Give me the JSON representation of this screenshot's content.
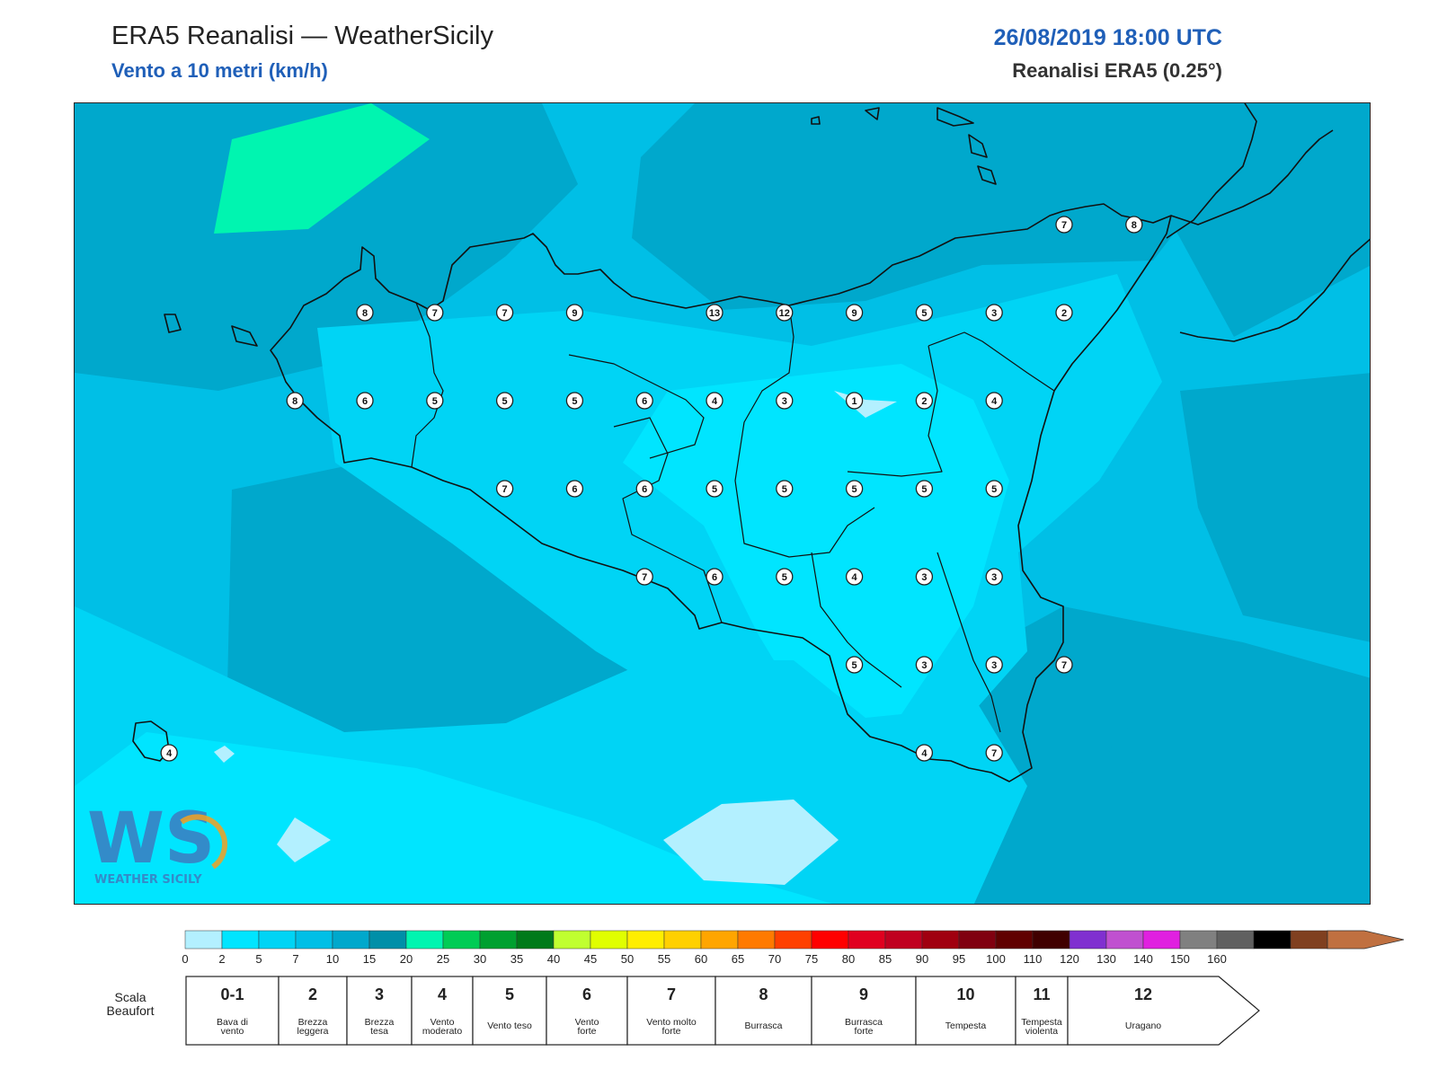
{
  "header": {
    "title": "ERA5 Reanalisi — WeatherSicily",
    "subtitle": "Vento a 10 metri (km/h)",
    "datetime": "26/08/2019 18:00 UTC",
    "source": "Reanalisi ERA5 (0.25°)"
  },
  "logo": {
    "text": "WEATHER SICILY",
    "letters": "WS"
  },
  "stations": [
    {
      "v": "8",
      "lon": 12.9,
      "lat": 38.1
    },
    {
      "v": "7",
      "lon": 13.4,
      "lat": 38.1
    },
    {
      "v": "7",
      "lon": 13.9,
      "lat": 38.1
    },
    {
      "v": "9",
      "lon": 14.4,
      "lat": 38.1
    },
    {
      "v": "13",
      "lon": 15.4,
      "lat": 38.1
    },
    {
      "v": "12",
      "lon": 15.9,
      "lat": 38.1
    },
    {
      "v": "9",
      "lon": 16.4,
      "lat": 38.1
    },
    {
      "v": "5",
      "lon": 16.9,
      "lat": 38.1
    },
    {
      "v": "3",
      "lon": 17.4,
      "lat": 38.1
    },
    {
      "v": "2",
      "lon": 17.9,
      "lat": 38.1
    },
    {
      "v": "8",
      "lon": 12.4,
      "lat": 37.6
    },
    {
      "v": "6",
      "lon": 12.9,
      "lat": 37.6
    },
    {
      "v": "5",
      "lon": 13.4,
      "lat": 37.6
    },
    {
      "v": "5",
      "lon": 13.9,
      "lat": 37.6
    },
    {
      "v": "5",
      "lon": 14.4,
      "lat": 37.6
    },
    {
      "v": "6",
      "lon": 14.9,
      "lat": 37.6
    },
    {
      "v": "4",
      "lon": 15.4,
      "lat": 37.6
    },
    {
      "v": "3",
      "lon": 15.9,
      "lat": 37.6
    },
    {
      "v": "1",
      "lon": 16.4,
      "lat": 37.6
    },
    {
      "v": "2",
      "lon": 16.9,
      "lat": 37.6
    },
    {
      "v": "4",
      "lon": 17.4,
      "lat": 37.6
    },
    {
      "v": "7",
      "lon": 13.9,
      "lat": 37.1
    },
    {
      "v": "6",
      "lon": 14.4,
      "lat": 37.1
    },
    {
      "v": "6",
      "lon": 14.9,
      "lat": 37.1
    },
    {
      "v": "5",
      "lon": 15.4,
      "lat": 37.1
    },
    {
      "v": "5",
      "lon": 15.9,
      "lat": 37.1
    },
    {
      "v": "5",
      "lon": 16.4,
      "lat": 37.1
    },
    {
      "v": "5",
      "lon": 16.9,
      "lat": 37.1
    },
    {
      "v": "5",
      "lon": 17.4,
      "lat": 37.1
    },
    {
      "v": "7",
      "lon": 14.9,
      "lat": 36.6
    },
    {
      "v": "6",
      "lon": 15.4,
      "lat": 36.6
    },
    {
      "v": "5",
      "lon": 15.9,
      "lat": 36.6
    },
    {
      "v": "4",
      "lon": 16.4,
      "lat": 36.6
    },
    {
      "v": "3",
      "lon": 16.9,
      "lat": 36.6
    },
    {
      "v": "3",
      "lon": 17.4,
      "lat": 36.6
    },
    {
      "v": "5",
      "lon": 16.4,
      "lat": 36.1
    },
    {
      "v": "3",
      "lon": 16.9,
      "lat": 36.1
    },
    {
      "v": "3",
      "lon": 17.4,
      "lat": 36.1
    },
    {
      "v": "7",
      "lon": 17.9,
      "lat": 36.1
    },
    {
      "v": "4",
      "lon": 11.5,
      "lat": 35.6
    },
    {
      "v": "4",
      "lon": 16.9,
      "lat": 35.6
    },
    {
      "v": "7",
      "lon": 17.4,
      "lat": 35.6
    },
    {
      "v": "7",
      "lon": 17.9,
      "lat": 38.6
    },
    {
      "v": "8",
      "lon": 18.4,
      "lat": 38.6
    }
  ],
  "colorbar": {
    "ticks": [
      "0",
      "2",
      "5",
      "7",
      "10",
      "15",
      "20",
      "25",
      "30",
      "35",
      "40",
      "45",
      "50",
      "55",
      "60",
      "65",
      "70",
      "75",
      "80",
      "85",
      "90",
      "95",
      "100",
      "110",
      "120",
      "130",
      "140",
      "150",
      "160"
    ],
    "colors": [
      "#b3f0ff",
      "#00e5ff",
      "#00d4f5",
      "#00bfe6",
      "#00a8cc",
      "#008fa8",
      "#00f5b0",
      "#00cc55",
      "#00a030",
      "#007a1a",
      "#c0ff30",
      "#e0ff00",
      "#ffee00",
      "#ffd000",
      "#ffa500",
      "#ff7a00",
      "#ff4000",
      "#ff0000",
      "#e00020",
      "#c00020",
      "#a00010",
      "#800010",
      "#600000",
      "#400000",
      "#8030d0",
      "#c050d0",
      "#e020e0",
      "#808080",
      "#606060",
      "#000000",
      "#804020",
      "#c07040"
    ]
  },
  "beaufort": {
    "scale_label_1": "Scala",
    "scale_label_2": "Beaufort",
    "classes": [
      {
        "n": "0-1",
        "l1": "Bava di",
        "l2": "vento"
      },
      {
        "n": "2",
        "l1": "Brezza",
        "l2": "leggera"
      },
      {
        "n": "3",
        "l1": "Brezza",
        "l2": "tesa"
      },
      {
        "n": "4",
        "l1": "Vento",
        "l2": "moderato"
      },
      {
        "n": "5",
        "l1": "Vento teso",
        "l2": ""
      },
      {
        "n": "6",
        "l1": "Vento",
        "l2": "forte"
      },
      {
        "n": "7",
        "l1": "Vento molto",
        "l2": "forte"
      },
      {
        "n": "8",
        "l1": "Burrasca",
        "l2": ""
      },
      {
        "n": "9",
        "l1": "Burrasca",
        "l2": "forte"
      },
      {
        "n": "10",
        "l1": "Tempesta",
        "l2": ""
      },
      {
        "n": "11",
        "l1": "Tempesta",
        "l2": "violenta"
      },
      {
        "n": "12",
        "l1": "Uragano",
        "l2": ""
      }
    ]
  }
}
